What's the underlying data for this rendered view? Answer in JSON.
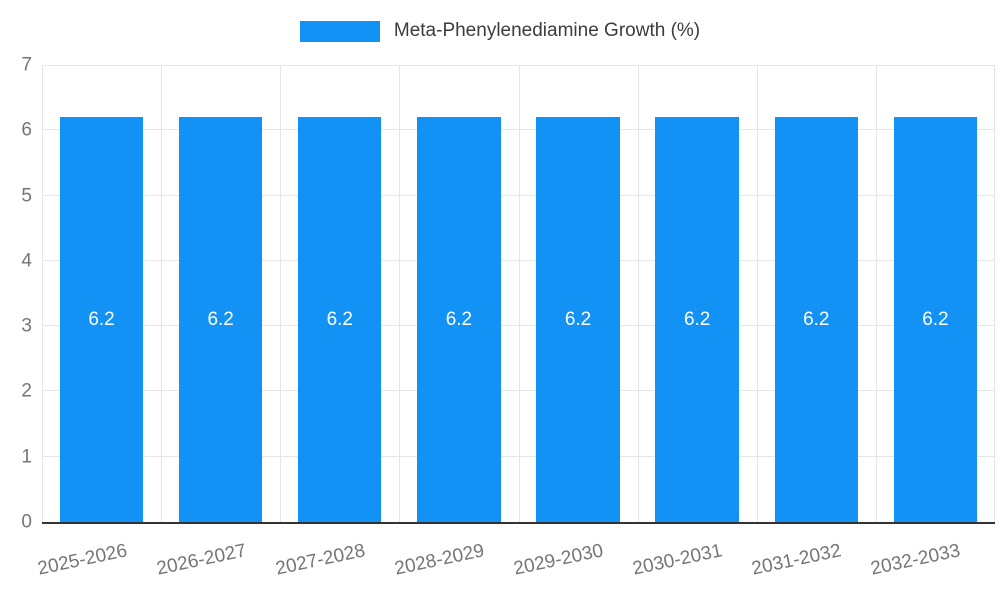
{
  "legend": {
    "label": "Meta-Phenylenediamine Growth (%)"
  },
  "chart_data": {
    "type": "bar",
    "title": "",
    "categories": [
      "2025-2026",
      "2026-2027",
      "2027-2028",
      "2028-2029",
      "2029-2030",
      "2030-2031",
      "2031-2032",
      "2032-2033"
    ],
    "series": [
      {
        "name": "Meta-Phenylenediamine Growth (%)",
        "values": [
          6.2,
          6.2,
          6.2,
          6.2,
          6.2,
          6.2,
          6.2,
          6.2
        ]
      }
    ],
    "data_labels": [
      "6.2",
      "6.2",
      "6.2",
      "6.2",
      "6.2",
      "6.2",
      "6.2",
      "6.2"
    ],
    "xlabel": "",
    "ylabel": "",
    "ylim": [
      0,
      7
    ],
    "yticks": [
      0,
      1,
      2,
      3,
      4,
      5,
      6,
      7
    ],
    "grid": true,
    "legend_position": "top",
    "colors": {
      "bar": "#1292f5",
      "grid": "#e6e6e6",
      "axis": "#333333",
      "tick_label": "#757575",
      "data_label": "#ffffff",
      "legend_text": "#3c3c3c"
    }
  }
}
